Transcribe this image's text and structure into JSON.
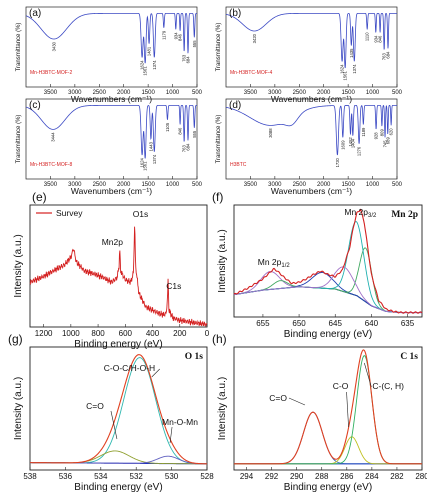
{
  "chart_data": [
    {
      "id": "a",
      "type": "line",
      "panel_label": "(a)",
      "xlabel": "Wavenumbers (cm⁻¹)",
      "ylabel": "Transmittance (%)",
      "xlim": [
        4000,
        500
      ],
      "xticks": [
        3500,
        3000,
        2500,
        2000,
        1500,
        1000,
        500
      ],
      "sample_label": "Mn-H3BTC-MOF-2",
      "peak_labels": [
        3430,
        1624,
        1561,
        1481,
        1374,
        1179,
        934,
        846,
        763,
        684,
        555
      ],
      "line_color": "#3b49c4"
    },
    {
      "id": "b",
      "type": "line",
      "panel_label": "(b)",
      "xlabel": "Wavenumbers (cm⁻¹)",
      "ylabel": "Transmittance (%)",
      "xlim": [
        4000,
        500
      ],
      "xticks": [
        3500,
        3000,
        2500,
        2000,
        1500,
        1000,
        500
      ],
      "sample_label": "Mn-H3BTC-MOF-4",
      "peak_labels": [
        3420,
        1624,
        1561,
        1435,
        1374,
        1110,
        934,
        846,
        763,
        684
      ],
      "line_color": "#3b49c4"
    },
    {
      "id": "c",
      "type": "line",
      "panel_label": "(c)",
      "xlabel": "Wavenumbers (cm⁻¹)",
      "ylabel": "Transmittance (%)",
      "xlim": [
        4000,
        500
      ],
      "xticks": [
        3500,
        3000,
        2500,
        2000,
        1500,
        1000,
        500
      ],
      "sample_label": "Mn-H3BTC-MOF-8",
      "peak_labels": [
        3444,
        1624,
        1561,
        1443,
        1374,
        1105,
        846,
        763,
        684,
        555
      ],
      "line_color": "#3b49c4"
    },
    {
      "id": "d",
      "type": "line",
      "panel_label": "(d)",
      "xlabel": "Wavenumbers (cm⁻¹)",
      "ylabel": "Transmittance (%)",
      "xlim": [
        4000,
        500
      ],
      "xticks": [
        3500,
        3000,
        2500,
        2000,
        1500,
        1000,
        500
      ],
      "sample_label": "H3BTC",
      "peak_labels": [
        3088,
        1720,
        1609,
        1452,
        1404,
        1276,
        1189,
        928,
        809,
        745,
        689,
        620
      ],
      "line_color": "#3b49c4"
    },
    {
      "id": "e",
      "type": "line",
      "panel_label": "(e)",
      "xlabel": "Binding energy (eV)",
      "ylabel": "Intensity (a.u.)",
      "xlim": [
        1300,
        0
      ],
      "xticks": [
        1200,
        1000,
        800,
        600,
        400,
        200,
        0
      ],
      "legend": [
        "Survey"
      ],
      "legend_position": "top-left",
      "annotations": [
        {
          "text": "O1s",
          "x": 531
        },
        {
          "text": "Mn2p",
          "x": 641
        },
        {
          "text": "C1s",
          "x": 284.8
        }
      ],
      "series": [
        {
          "name": "Survey",
          "color": "#d42020",
          "x": [
            1300,
            1200,
            1100,
            1050,
            1000,
            980,
            960,
            900,
            850,
            800,
            760,
            700,
            680,
            660,
            645,
            641,
            635,
            600,
            560,
            540,
            531,
            525,
            500,
            450,
            400,
            350,
            320,
            300,
            290,
            285,
            280,
            250,
            200,
            150,
            100,
            50,
            0
          ],
          "y": [
            0.4,
            0.45,
            0.52,
            0.55,
            0.62,
            0.7,
            0.58,
            0.5,
            0.48,
            0.46,
            0.44,
            0.4,
            0.42,
            0.44,
            0.55,
            0.72,
            0.5,
            0.42,
            0.4,
            0.48,
            0.95,
            0.55,
            0.3,
            0.18,
            0.15,
            0.12,
            0.11,
            0.12,
            0.25,
            0.45,
            0.15,
            0.08,
            0.06,
            0.05,
            0.04,
            0.03,
            0.02
          ]
        }
      ]
    },
    {
      "id": "f",
      "type": "line",
      "panel_label": "(f)",
      "title": "Mn 2p",
      "xlabel": "Binding energy (eV)",
      "ylabel": "Intensity (a.u.)",
      "xlim": [
        659,
        633
      ],
      "xticks": [
        655,
        650,
        645,
        640,
        635
      ],
      "annotations": [
        {
          "text": "Mn 2p",
          "sub": "1/2",
          "x": 653.5
        },
        {
          "text": "Mn 2p",
          "sub": "3/2",
          "x": 641.8
        }
      ],
      "series": [
        {
          "name": "measured",
          "color": "#d42020",
          "x": [
            659,
            657,
            655,
            654,
            653.5,
            653,
            652,
            651,
            650,
            649,
            648,
            647,
            646,
            645,
            644,
            643,
            642.5,
            642,
            641.5,
            641,
            640.5,
            640,
            639,
            638,
            637,
            636,
            635,
            634,
            633
          ],
          "y": [
            0.2,
            0.26,
            0.34,
            0.4,
            0.43,
            0.41,
            0.35,
            0.3,
            0.31,
            0.34,
            0.38,
            0.41,
            0.38,
            0.36,
            0.42,
            0.62,
            0.8,
            0.93,
            0.96,
            0.85,
            0.62,
            0.38,
            0.15,
            0.07,
            0.05,
            0.04,
            0.04,
            0.04,
            0.04
          ]
        },
        {
          "name": "background",
          "color": "#2030c0",
          "x": [
            659,
            655,
            650,
            645,
            642,
            640,
            638,
            636,
            633
          ],
          "y": [
            0.2,
            0.24,
            0.27,
            0.25,
            0.19,
            0.1,
            0.05,
            0.04,
            0.04
          ]
        },
        {
          "name": "Mn 2p1/2 a",
          "color": "#a070c8",
          "center": 654.0,
          "amp": 0.16,
          "sigma": 1.3
        },
        {
          "name": "Mn 2p1/2 b",
          "color": "#40a860",
          "center": 652.6,
          "amp": 0.07,
          "sigma": 1.0
        },
        {
          "name": "satellite",
          "color": "#2040b0",
          "center": 646.8,
          "amp": 0.14,
          "sigma": 1.4
        },
        {
          "name": "Mn 2p3/2 a",
          "color": "#40a860",
          "center": 640.8,
          "amp": 0.48,
          "sigma": 0.85
        },
        {
          "name": "Mn 2p3/2 b",
          "color": "#20b0b0",
          "center": 642.1,
          "amp": 0.66,
          "sigma": 1.05
        },
        {
          "name": "Mn 2p3/2 c",
          "color": "#a070c8",
          "center": 643.8,
          "amp": 0.22,
          "sigma": 1.3
        }
      ]
    },
    {
      "id": "g",
      "type": "line",
      "panel_label": "(g)",
      "title": "O 1s",
      "xlabel": "Binding energy (eV)",
      "ylabel": "Intensity (a.u.)",
      "xlim": [
        538,
        528
      ],
      "xticks": [
        538,
        536,
        534,
        532,
        530,
        528
      ],
      "annotations": [
        {
          "text": "C-O-C/H-O-H",
          "x": 531.8
        },
        {
          "text": "C=O",
          "x": 533.2
        },
        {
          "text": "Mn-O-Mn",
          "x": 530.2
        }
      ],
      "series": [
        {
          "name": "background",
          "color": "#2030c0",
          "x": [
            538,
            528
          ],
          "y": [
            0.06,
            0.05
          ]
        },
        {
          "name": "C-O-C/H-O-H",
          "color": "#30b8b0",
          "center": 531.8,
          "amp": 0.86,
          "sigma": 0.9
        },
        {
          "name": "C=O",
          "color": "#90a030",
          "center": 533.2,
          "amp": 0.1,
          "sigma": 0.8
        },
        {
          "name": "Mn-O-Mn",
          "color": "#6060c0",
          "center": 530.2,
          "amp": 0.06,
          "sigma": 0.6
        },
        {
          "name": "envelope",
          "color": "#e04020",
          "sum": true
        }
      ]
    },
    {
      "id": "h",
      "type": "line",
      "panel_label": "(h)",
      "title": "C 1s",
      "xlabel": "Binding energy (eV)",
      "ylabel": "Intensity (a.u.)",
      "xlim": [
        295,
        280
      ],
      "xticks": [
        294,
        292,
        290,
        288,
        286,
        284,
        282,
        280
      ],
      "annotations": [
        {
          "text": "C=O",
          "x": 288.7
        },
        {
          "text": "C-O",
          "x": 285.7
        },
        {
          "text": "C-(C, H)",
          "x": 284.6
        }
      ],
      "series": [
        {
          "name": "background",
          "color": "#2030c0",
          "x": [
            295,
            280
          ],
          "y": [
            0.05,
            0.05
          ]
        },
        {
          "name": "C=O",
          "color": "#3060c0",
          "center": 288.7,
          "amp": 0.42,
          "sigma": 0.75
        },
        {
          "name": "C-O",
          "color": "#c0c020",
          "center": 285.6,
          "amp": 0.22,
          "sigma": 0.55
        },
        {
          "name": "C-(C, H)",
          "color": "#30b060",
          "center": 284.6,
          "amp": 0.88,
          "sigma": 0.6
        },
        {
          "name": "envelope",
          "color": "#e04020",
          "sum": true
        }
      ]
    }
  ]
}
